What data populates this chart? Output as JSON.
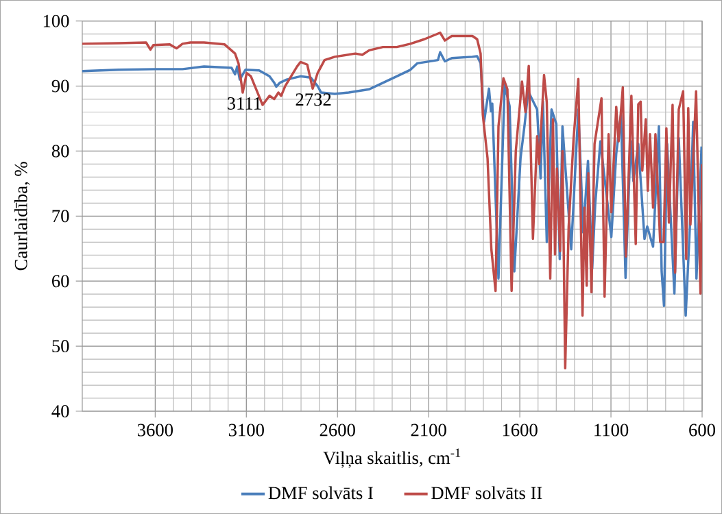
{
  "chart_data": {
    "type": "line",
    "xlabel": "Viļņa skaitlis, cm$^{-1}$",
    "ylabel": "Caurlaidība, %",
    "xlim": [
      4000,
      600
    ],
    "ylim": [
      40,
      100
    ],
    "xticks": [
      3600,
      3100,
      2600,
      2100,
      1600,
      1100,
      600
    ],
    "yticks": [
      40,
      50,
      60,
      70,
      80,
      90,
      100
    ],
    "grid": true,
    "legend": "bottom",
    "marker": "none",
    "line_style": "solid",
    "annotations": [
      {
        "text": "3111",
        "x": 3111,
        "y": 89
      },
      {
        "text": "2732",
        "x": 2732,
        "y": 89.6
      }
    ],
    "series": [
      {
        "name": "DMF solvāts I",
        "color": "#4a7ebb",
        "x": [
          4000,
          3800,
          3600,
          3450,
          3332,
          3181,
          3162,
          3150,
          3136,
          3105,
          3030,
          2973,
          2947,
          2936,
          2917,
          2879,
          2803,
          2747,
          2709,
          2690,
          2615,
          2539,
          2426,
          2351,
          2275,
          2200,
          2162,
          2049,
          2037,
          2011,
          1973,
          1860,
          1834,
          1815,
          1796,
          1769,
          1758,
          1751,
          1717,
          1683,
          1656,
          1630,
          1596,
          1573,
          1554,
          1505,
          1486,
          1473,
          1452,
          1426,
          1400,
          1381,
          1366,
          1351,
          1318,
          1279,
          1252,
          1226,
          1203,
          1186,
          1158,
          1098,
          1071,
          1045,
          1020,
          992,
          977,
          950,
          916,
          901,
          869,
          837,
          822,
          809,
          792,
          752,
          728,
          690,
          667,
          649,
          631,
          603
        ],
        "values": [
          92.3,
          92.5,
          92.6,
          92.6,
          93,
          92.8,
          91.8,
          93,
          91,
          92.5,
          92.4,
          91.5,
          90.5,
          89.9,
          90.5,
          91,
          91.5,
          91.3,
          90,
          89,
          88.8,
          89,
          89.5,
          90.5,
          91.5,
          92.5,
          93.5,
          94,
          95.2,
          93.8,
          94.3,
          94.5,
          94.6,
          93.5,
          84.5,
          89.6,
          86.1,
          87.3,
          60.4,
          90.2,
          86.9,
          61.5,
          78.9,
          84.2,
          89.2,
          86.4,
          75.8,
          87.6,
          66,
          86.4,
          84.2,
          63.4,
          83.8,
          null,
          64.9,
          86.4,
          67.5,
          78.5,
          61.9,
          72,
          81.5,
          66.8,
          79.6,
          85.6,
          60.5,
          81.5,
          75.4,
          81.1,
          66.5,
          68.4,
          65.3,
          83.8,
          61.5,
          56.2,
          81.1,
          58.1,
          82,
          54.7,
          68.4,
          84.5,
          60.4,
          80.7
        ]
      },
      {
        "name": "DMF solvāts II",
        "color": "#be4b48",
        "x": [
          4000,
          3800,
          3650,
          3626,
          3610,
          3520,
          3483,
          3450,
          3407,
          3332,
          3219,
          3162,
          3143,
          3120,
          3098,
          3075,
          3011,
          2973,
          2947,
          2924,
          2909,
          2887,
          2822,
          2803,
          2766,
          2736,
          2709,
          2671,
          2615,
          2502,
          2464,
          2426,
          2351,
          2275,
          2200,
          2124,
          2037,
          2011,
          1973,
          1860,
          1834,
          1815,
          1803,
          1777,
          1756,
          1733,
          1717,
          1690,
          1668,
          1645,
          1622,
          1588,
          1569,
          1551,
          1528,
          1505,
          1494,
          1467,
          1452,
          1433,
          1418,
          1407,
          1396,
          1379,
          1366,
          1351,
          1332,
          1305,
          1279,
          1256,
          1245,
          1233,
          1224,
          1207,
          1190,
          1152,
          1135,
          1113,
          1098,
          1071,
          1058,
          1035,
          1018,
          988,
          964,
          950,
          937,
          928,
          909,
          898,
          886,
          869,
          856,
          830,
          811,
          796,
          782,
          762,
          748,
          728,
          704,
          687,
          676,
          664,
          633,
          609,
          600
        ],
        "values": [
          96.5,
          96.6,
          96.7,
          95.6,
          96.3,
          96.4,
          95.8,
          96.5,
          96.7,
          96.7,
          96.4,
          95,
          93.5,
          89,
          92,
          91.5,
          87.1,
          88.5,
          88,
          89,
          88.5,
          90,
          93,
          93.7,
          93.3,
          89.6,
          92,
          94,
          94.5,
          95,
          94.8,
          95.5,
          96,
          96,
          96.5,
          97.2,
          98.2,
          97,
          97.7,
          97.7,
          97.2,
          95,
          85.6,
          78.9,
          64.9,
          58.5,
          83.8,
          91.2,
          89.5,
          58.5,
          80,
          90.7,
          86,
          93.1,
          66.5,
          82.3,
          78,
          91.7,
          87.5,
          60.4,
          84.9,
          64.1,
          77.3,
          64.6,
          80,
          46.6,
          68.4,
          81.9,
          91.1,
          54.7,
          71.3,
          59.3,
          76.6,
          58.3,
          81.1,
          88.1,
          57.6,
          82.6,
          70.6,
          86.8,
          81.5,
          89.8,
          63.8,
          88.5,
          65.7,
          87.2,
          87.6,
          77,
          84.9,
          73.9,
          82.6,
          71.3,
          82.6,
          66,
          66,
          83.5,
          69,
          87.1,
          61.3,
          86.4,
          89.2,
          63.4,
          86.6,
          68.7,
          89.2,
          58.1,
          78
        ]
      }
    ]
  }
}
